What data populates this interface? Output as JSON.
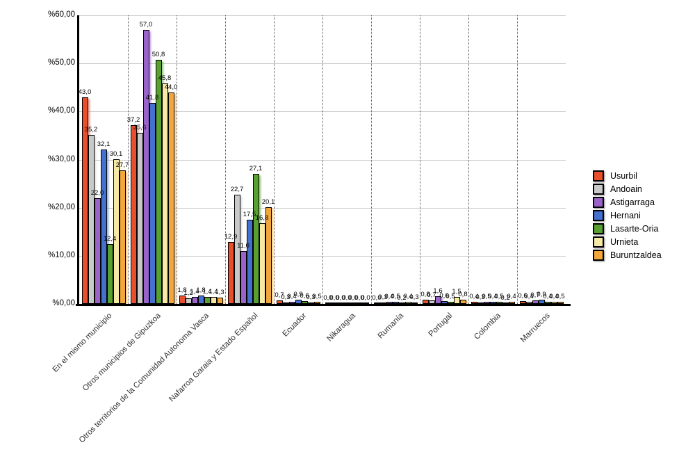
{
  "chart_data": {
    "type": "bar",
    "title": "",
    "categories": [
      "En el mismo municipio",
      "Otros municipios de Gipuzkoa",
      "Otros territorios de la Comunidad Autonoma Vasca",
      "Nafarroa Garaia y Estado Español",
      "Ecuador",
      "Nikaragua",
      "Rumanía",
      "Portugal",
      "Colombia",
      "Marruecos"
    ],
    "series": [
      {
        "name": "Usurbil",
        "color": "#E8502D",
        "values": [
          43.0,
          37.2,
          1.8,
          12.9,
          0.7,
          0.0,
          0.0,
          0.8,
          0.4,
          0.6
        ]
      },
      {
        "name": "Andoain",
        "color": "#C9C9C9",
        "values": [
          35.2,
          35.6,
          1.2,
          22.7,
          0.3,
          0.0,
          0.3,
          0.7,
          0.3,
          0.4
        ]
      },
      {
        "name": "Astigarraga",
        "color": "#9A63C9",
        "values": [
          22.0,
          57.0,
          1.4,
          11.0,
          0.4,
          0.0,
          0.4,
          1.6,
          0.5,
          0.7
        ]
      },
      {
        "name": "Hernani",
        "color": "#4470CE",
        "values": [
          32.1,
          41.8,
          1.8,
          17.5,
          0.9,
          0.0,
          0.5,
          0.6,
          0.4,
          0.9
        ]
      },
      {
        "name": "Lasarte-Oria",
        "color": "#58A030",
        "values": [
          12.4,
          50.8,
          1.4,
          27.1,
          0.6,
          0.0,
          0.2,
          0.5,
          0.5,
          0.4
        ]
      },
      {
        "name": "Urnieta",
        "color": "#F6E9A4",
        "values": [
          30.1,
          45.8,
          1.4,
          16.8,
          0.3,
          0.0,
          0.4,
          1.5,
          0.2,
          0.4
        ]
      },
      {
        "name": "Buruntzaldea",
        "color": "#F2A73B",
        "values": [
          27.7,
          44.0,
          1.3,
          20.1,
          0.5,
          0.0,
          0.3,
          0.8,
          0.4,
          0.5
        ]
      }
    ],
    "y_axis": {
      "min": 0,
      "max": 60,
      "step": 10,
      "tick_labels": [
        "%0,00",
        "%10,00",
        "%20,00",
        "%30,00",
        "%40,00",
        "%50,00",
        "%60,00"
      ]
    },
    "legend": {
      "position": "right",
      "items": [
        "Usurbil",
        "Andoain",
        "Astigarraga",
        "Hernani",
        "Lasarte-Oria",
        "Urnieta",
        "Buruntzaldea"
      ]
    },
    "grid": true,
    "value_labels": true,
    "decimal_separator": ","
  }
}
